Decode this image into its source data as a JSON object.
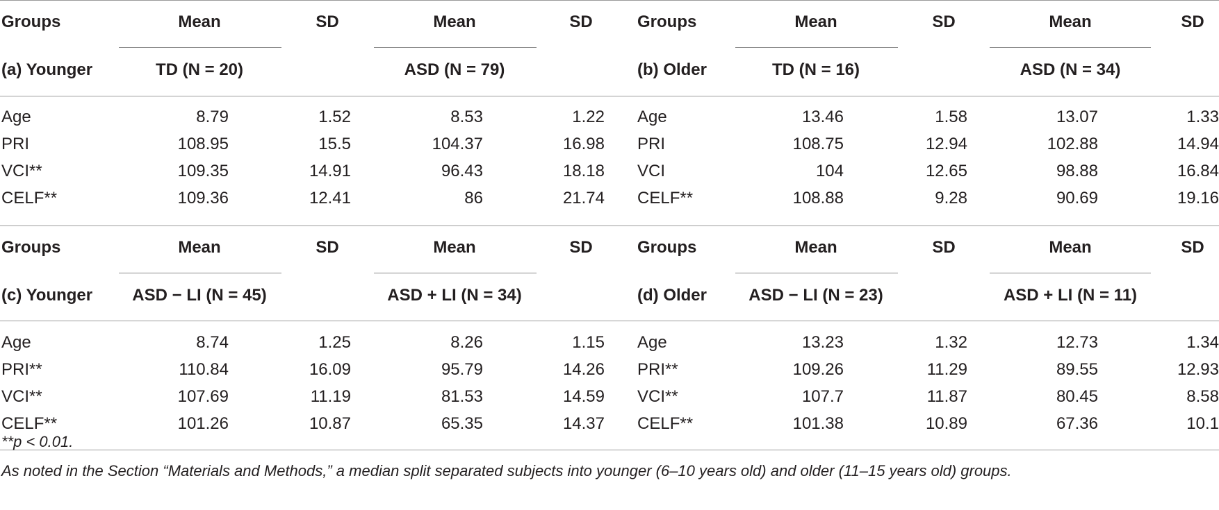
{
  "header": {
    "groups": "Groups",
    "mean": "Mean",
    "sd": "SD"
  },
  "panels": {
    "a": {
      "label": "(a) Younger",
      "g1": "TD (N = 20)",
      "g2": "ASD (N = 79)"
    },
    "b": {
      "label": "(b) Older",
      "g1": "TD (N = 16)",
      "g2": "ASD (N = 34)"
    },
    "c": {
      "label": "(c) Younger",
      "g1": "ASD − LI (N = 45)",
      "g2": "ASD + LI (N = 34)"
    },
    "d": {
      "label": "(d) Older",
      "g1": "ASD − LI (N = 23)",
      "g2": "ASD + LI (N = 11)"
    }
  },
  "rows": {
    "a": [
      {
        "measure": "Age",
        "m1": "8.79",
        "s1": "1.52",
        "m2": "8.53",
        "s2": "1.22"
      },
      {
        "measure": "PRI",
        "m1": "108.95",
        "s1": "15.5",
        "m2": "104.37",
        "s2": "16.98"
      },
      {
        "measure": "VCI**",
        "m1": "109.35",
        "s1": "14.91",
        "m2": "96.43",
        "s2": "18.18"
      },
      {
        "measure": "CELF**",
        "m1": "109.36",
        "s1": "12.41",
        "m2": "86",
        "s2": "21.74"
      }
    ],
    "b": [
      {
        "measure": "Age",
        "m1": "13.46",
        "s1": "1.58",
        "m2": "13.07",
        "s2": "1.33"
      },
      {
        "measure": "PRI",
        "m1": "108.75",
        "s1": "12.94",
        "m2": "102.88",
        "s2": "14.94"
      },
      {
        "measure": "VCI",
        "m1": "104",
        "s1": "12.65",
        "m2": "98.88",
        "s2": "16.84"
      },
      {
        "measure": "CELF**",
        "m1": "108.88",
        "s1": "9.28",
        "m2": "90.69",
        "s2": "19.16"
      }
    ],
    "c": [
      {
        "measure": "Age",
        "m1": "8.74",
        "s1": "1.25",
        "m2": "8.26",
        "s2": "1.15"
      },
      {
        "measure": "PRI**",
        "m1": "110.84",
        "s1": "16.09",
        "m2": "95.79",
        "s2": "14.26"
      },
      {
        "measure": "VCI**",
        "m1": "107.69",
        "s1": "11.19",
        "m2": "81.53",
        "s2": "14.59"
      },
      {
        "measure": "CELF**",
        "m1": "101.26",
        "s1": "10.87",
        "m2": "65.35",
        "s2": "14.37"
      }
    ],
    "d": [
      {
        "measure": "Age",
        "m1": "13.23",
        "s1": "1.32",
        "m2": "12.73",
        "s2": "1.34"
      },
      {
        "measure": "PRI**",
        "m1": "109.26",
        "s1": "11.29",
        "m2": "89.55",
        "s2": "12.93"
      },
      {
        "measure": "VCI**",
        "m1": "107.7",
        "s1": "11.87",
        "m2": "80.45",
        "s2": "8.58"
      },
      {
        "measure": "CELF**",
        "m1": "101.38",
        "s1": "10.89",
        "m2": "67.36",
        "s2": "10.1"
      }
    ]
  },
  "footnotes": {
    "significance": "**p < 0.01.",
    "method": "As noted in the Section “Materials and Methods,” a median split separated subjects into younger (6–10 years old) and older (11–15 years old) groups."
  }
}
